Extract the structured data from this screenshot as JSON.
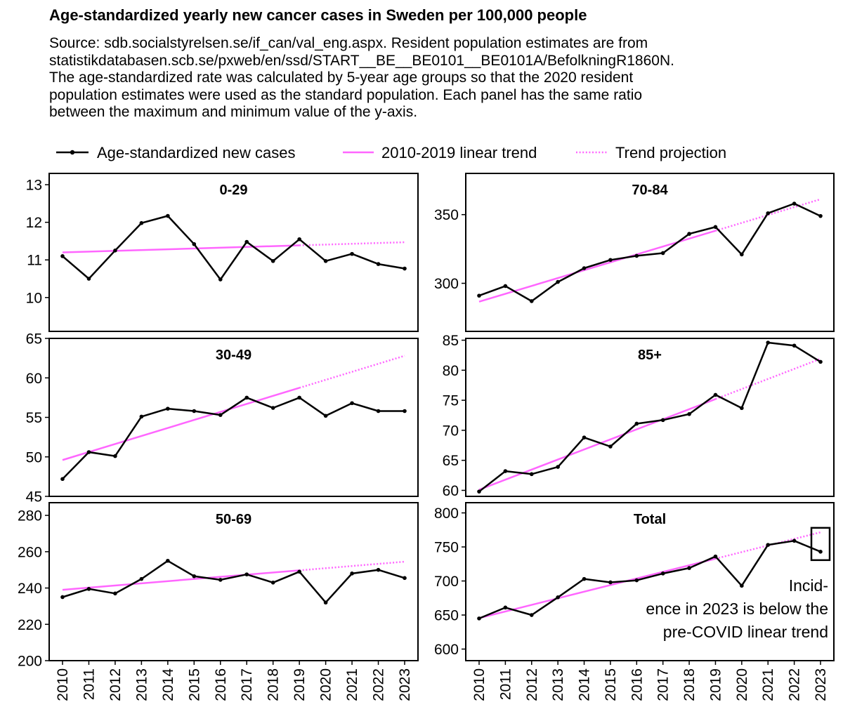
{
  "title": "Age-standardized yearly new cancer cases in Sweden per 100,000 people",
  "subtitle_lines": [
    "Source: sdb.socialstyrelsen.se/if_can/val_eng.aspx. Resident population estimates are from",
    "statistikdatabasen.scb.se/pxweb/en/ssd/START__BE__BE0101__BE0101A/BefolkningR1860N.",
    "The age-standardized rate was calculated by 5-year age groups so that the 2020 resident",
    "population estimates were used as the standard population. Each panel has the same ratio",
    "between the maximum and minimum value of the y-axis."
  ],
  "colors": {
    "data": "#000000",
    "trend": "#ff66ff"
  },
  "chart_data": {
    "type": "line",
    "legend": {
      "position": "top",
      "entries": [
        {
          "label": "Age-standardized new cases",
          "style": "black line with points"
        },
        {
          "label": "2010-2019 linear trend",
          "style": "solid pink line"
        },
        {
          "label": "Trend projection",
          "style": "dotted pink line"
        }
      ]
    },
    "x": [
      "2010",
      "2011",
      "2012",
      "2013",
      "2014",
      "2015",
      "2016",
      "2017",
      "2018",
      "2019",
      "2020",
      "2021",
      "2022",
      "2023"
    ],
    "panels": [
      {
        "name": "0-29",
        "ylim": [
          9.1,
          13.3
        ],
        "yticks": [
          10,
          11,
          12,
          13
        ],
        "values": [
          11.1,
          10.5,
          11.25,
          11.98,
          12.17,
          11.42,
          10.48,
          11.48,
          10.97,
          11.55,
          10.97,
          11.16,
          10.89,
          10.77
        ],
        "trend": [
          11.2,
          11.47
        ]
      },
      {
        "name": "70-84",
        "ylim": [
          265,
          380
        ],
        "yticks": [
          300,
          350
        ],
        "values": [
          291,
          298,
          287,
          301,
          311,
          317,
          320,
          322,
          336,
          341,
          321,
          351,
          358,
          349
        ],
        "trend": [
          286.6,
          361.2
        ]
      },
      {
        "name": "30-49",
        "ylim": [
          45,
          65
        ],
        "yticks": [
          45,
          50,
          55,
          60,
          65
        ],
        "values": [
          47.2,
          50.6,
          50.1,
          55.1,
          56.1,
          55.8,
          55.3,
          57.5,
          56.2,
          57.5,
          55.2,
          56.8,
          55.8,
          55.8
        ],
        "trend": [
          49.6,
          62.8
        ]
      },
      {
        "name": "85+",
        "ylim": [
          59,
          85.3
        ],
        "yticks": [
          60,
          65,
          70,
          75,
          80,
          85
        ],
        "values": [
          59.8,
          63.2,
          62.7,
          63.9,
          68.8,
          67.3,
          71.1,
          71.7,
          72.7,
          75.9,
          73.7,
          84.6,
          84.1,
          81.4
        ],
        "trend": [
          60.1,
          81.9
        ]
      },
      {
        "name": "50-69",
        "ylim": [
          200,
          287
        ],
        "yticks": [
          200,
          220,
          240,
          260,
          280
        ],
        "values": [
          235,
          239.5,
          237,
          245,
          255,
          246.5,
          244.5,
          247.5,
          243,
          249,
          232,
          248,
          250,
          245.5
        ],
        "trend": [
          239,
          254.5
        ]
      },
      {
        "name": "Total",
        "ylim": [
          583,
          815
        ],
        "yticks": [
          600,
          650,
          700,
          750,
          800
        ],
        "values": [
          645,
          661,
          650,
          676,
          703,
          698,
          701,
          711,
          719,
          736,
          693,
          753,
          759,
          743
        ],
        "trend": [
          645.5,
          771.5
        ]
      }
    ],
    "annotation": {
      "panel": "Total",
      "lines": [
        "Incid-",
        "ence in 2023 is below the",
        "pre-COVID linear trend"
      ]
    }
  }
}
